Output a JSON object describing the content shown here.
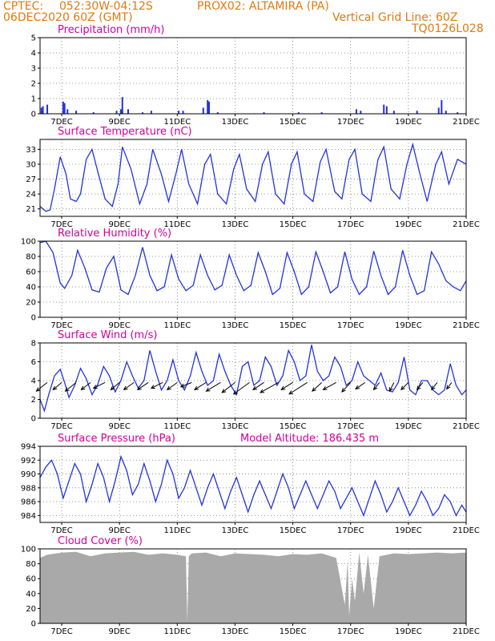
{
  "header": {
    "source": "CPTEC:",
    "coords": "052:30W-04:12S",
    "location": "PROX02: ALTAMIRA (PA)",
    "run": "06DEC2020 60Z (GMT)",
    "grid_note": "Vertical Grid Line: 60Z",
    "model_id": "TQ0126L028"
  },
  "colors": {
    "header": "#e07a10",
    "title": "#d0009a",
    "line": "#2233dd",
    "bars": "#2233dd",
    "cloud": "#a9a9a9"
  },
  "x_ticks": [
    "7DEC",
    "9DEC",
    "11DEC",
    "13DEC",
    "15DEC",
    "17DEC",
    "19DEC",
    "21DEC"
  ],
  "chart_data": [
    {
      "type": "bar",
      "title": "Precipitation (mm/h)",
      "ylim": [
        0,
        5
      ],
      "yticks": [
        "0",
        "1",
        "2",
        "3",
        "4",
        "5"
      ],
      "x_range_days": [
        6.25,
        21.0
      ],
      "x": [
        6.3,
        6.35,
        6.5,
        7.05,
        7.1,
        7.2,
        7.5,
        8.1,
        8.9,
        9.05,
        9.1,
        9.3,
        9.8,
        10.1,
        11.05,
        11.2,
        11.9,
        12.05,
        12.1,
        12.4,
        14.0,
        15.2,
        16.0,
        17.2,
        17.35,
        18.15,
        18.25,
        18.5,
        19.3,
        20.05,
        20.15,
        20.3,
        20.7
      ],
      "values": [
        0.4,
        0.5,
        0.6,
        0.8,
        0.7,
        0.3,
        0.2,
        0.1,
        0.2,
        0.3,
        1.1,
        0.3,
        0.1,
        0.2,
        0.2,
        0.2,
        0.4,
        0.9,
        0.8,
        0.1,
        0.1,
        0.1,
        0.1,
        0.3,
        0.2,
        0.6,
        0.5,
        0.2,
        0.2,
        0.4,
        0.9,
        0.2,
        0.1
      ]
    },
    {
      "type": "line",
      "title": "Surface Temperature (nC)",
      "ylim": [
        19.5,
        35
      ],
      "yticks": [
        "21",
        "24",
        "27",
        "30",
        "33"
      ],
      "x_range_days": [
        6.25,
        21.0
      ],
      "x": [
        6.25,
        6.45,
        6.6,
        6.75,
        6.95,
        7.15,
        7.3,
        7.5,
        7.65,
        7.85,
        8.05,
        8.25,
        8.5,
        8.75,
        8.95,
        9.1,
        9.4,
        9.7,
        9.95,
        10.15,
        10.45,
        10.7,
        10.95,
        11.15,
        11.4,
        11.7,
        11.95,
        12.15,
        12.4,
        12.7,
        12.95,
        13.15,
        13.4,
        13.7,
        13.95,
        14.15,
        14.4,
        14.7,
        14.95,
        15.15,
        15.4,
        15.7,
        15.95,
        16.15,
        16.45,
        16.7,
        16.95,
        17.15,
        17.4,
        17.7,
        17.95,
        18.15,
        18.4,
        18.7,
        18.95,
        19.15,
        19.4,
        19.65,
        19.95,
        20.15,
        20.4,
        20.7,
        21.0
      ],
      "values": [
        21.5,
        20.5,
        20.8,
        25.0,
        31.5,
        28.0,
        23.0,
        22.5,
        24.0,
        31.0,
        33.0,
        28.5,
        23.0,
        21.5,
        26.0,
        33.5,
        29.0,
        22.0,
        26.0,
        33.0,
        28.0,
        22.5,
        28.0,
        33.0,
        26.0,
        22.0,
        30.0,
        32.0,
        24.0,
        22.0,
        29.0,
        32.0,
        25.0,
        22.5,
        30.0,
        32.5,
        24.0,
        22.0,
        30.0,
        32.5,
        24.0,
        22.5,
        30.5,
        33.0,
        24.5,
        23.0,
        31.0,
        33.0,
        24.0,
        22.5,
        31.0,
        33.5,
        25.0,
        23.0,
        30.0,
        34.0,
        28.0,
        22.5,
        30.0,
        32.5,
        26.0,
        31.0,
        30.0
      ]
    },
    {
      "type": "line",
      "title": "Relative Humidity (%)",
      "ylim": [
        0,
        100
      ],
      "yticks": [
        "0",
        "20",
        "40",
        "60",
        "80",
        "100"
      ],
      "x_range_days": [
        6.25,
        21.0
      ],
      "x": [
        6.25,
        6.45,
        6.7,
        6.95,
        7.1,
        7.35,
        7.55,
        7.8,
        8.05,
        8.3,
        8.55,
        8.8,
        9.05,
        9.3,
        9.55,
        9.8,
        10.05,
        10.3,
        10.55,
        10.8,
        11.05,
        11.3,
        11.55,
        11.8,
        12.05,
        12.3,
        12.55,
        12.8,
        13.05,
        13.3,
        13.55,
        13.8,
        14.05,
        14.3,
        14.55,
        14.8,
        15.05,
        15.3,
        15.55,
        15.8,
        16.05,
        16.3,
        16.55,
        16.8,
        17.05,
        17.3,
        17.55,
        17.8,
        18.05,
        18.3,
        18.55,
        18.8,
        19.05,
        19.3,
        19.55,
        19.8,
        20.05,
        20.3,
        20.55,
        20.8,
        21.0
      ],
      "values": [
        98,
        100,
        85,
        45,
        38,
        55,
        88,
        65,
        36,
        33,
        65,
        80,
        36,
        30,
        55,
        92,
        55,
        35,
        40,
        82,
        50,
        35,
        42,
        82,
        55,
        36,
        42,
        82,
        55,
        35,
        42,
        85,
        60,
        30,
        38,
        85,
        60,
        30,
        40,
        86,
        60,
        32,
        40,
        86,
        50,
        30,
        40,
        87,
        55,
        30,
        40,
        88,
        55,
        30,
        35,
        86,
        70,
        48,
        40,
        35,
        48
      ]
    },
    {
      "type": "line",
      "title": "Surface Wind (m/s)",
      "ylim": [
        0,
        8
      ],
      "yticks": [
        "0",
        "2",
        "4",
        "6",
        "8"
      ],
      "x_range_days": [
        6.25,
        21.0
      ],
      "x": [
        6.25,
        6.4,
        6.55,
        6.75,
        6.95,
        7.1,
        7.25,
        7.45,
        7.65,
        7.85,
        8.05,
        8.25,
        8.45,
        8.65,
        8.85,
        9.05,
        9.25,
        9.45,
        9.65,
        9.85,
        10.05,
        10.25,
        10.45,
        10.65,
        10.85,
        11.05,
        11.25,
        11.45,
        11.65,
        11.85,
        12.05,
        12.25,
        12.45,
        12.65,
        12.85,
        13.05,
        13.25,
        13.45,
        13.65,
        13.85,
        14.05,
        14.25,
        14.45,
        14.65,
        14.85,
        15.05,
        15.25,
        15.45,
        15.65,
        15.85,
        16.05,
        16.25,
        16.45,
        16.65,
        16.85,
        17.05,
        17.25,
        17.45,
        17.65,
        17.85,
        18.05,
        18.25,
        18.45,
        18.65,
        18.85,
        19.05,
        19.25,
        19.45,
        19.65,
        19.85,
        20.05,
        20.25,
        20.45,
        20.65,
        20.85,
        21.0
      ],
      "values": [
        2.0,
        0.8,
        2.5,
        4.5,
        5.2,
        3.8,
        2.2,
        3.5,
        5.3,
        4.2,
        2.5,
        3.6,
        5.5,
        4.5,
        2.8,
        4.0,
        6.0,
        4.5,
        3.2,
        4.0,
        7.2,
        5.0,
        3.0,
        4.0,
        6.2,
        4.0,
        3.0,
        4.5,
        7.0,
        5.0,
        3.5,
        4.0,
        6.8,
        5.0,
        3.5,
        2.5,
        5.5,
        6.0,
        3.5,
        4.0,
        6.5,
        5.5,
        3.5,
        4.5,
        7.2,
        6.0,
        4.0,
        4.5,
        7.8,
        5.0,
        4.0,
        4.5,
        6.5,
        5.5,
        3.5,
        4.0,
        6.0,
        4.5,
        4.0,
        3.5,
        4.8,
        3.0,
        2.8,
        3.8,
        6.5,
        3.0,
        2.5,
        4.0,
        4.0,
        3.0,
        2.5,
        3.0,
        5.8,
        3.5,
        2.5,
        3.0
      ]
    },
    {
      "type": "line",
      "title": "Surface Pressure (hPa)",
      "annotation": "Model Altitude: 186.435 m",
      "ylim": [
        983,
        994
      ],
      "yticks": [
        "984",
        "986",
        "988",
        "990",
        "992",
        "994"
      ],
      "x_range_days": [
        6.25,
        21.0
      ],
      "x": [
        6.25,
        6.45,
        6.65,
        6.85,
        7.05,
        7.25,
        7.45,
        7.65,
        7.85,
        8.05,
        8.25,
        8.45,
        8.65,
        8.85,
        9.05,
        9.25,
        9.45,
        9.65,
        9.85,
        10.05,
        10.25,
        10.45,
        10.65,
        10.85,
        11.05,
        11.25,
        11.45,
        11.65,
        11.85,
        12.05,
        12.25,
        12.45,
        12.65,
        12.85,
        13.05,
        13.25,
        13.45,
        13.65,
        13.85,
        14.05,
        14.25,
        14.45,
        14.65,
        14.85,
        15.05,
        15.25,
        15.45,
        15.65,
        15.85,
        16.05,
        16.25,
        16.45,
        16.65,
        16.85,
        17.05,
        17.25,
        17.45,
        17.65,
        17.85,
        18.05,
        18.25,
        18.45,
        18.65,
        18.85,
        19.05,
        19.25,
        19.45,
        19.65,
        19.85,
        20.05,
        20.25,
        20.45,
        20.65,
        20.85,
        21.0
      ],
      "values": [
        989.5,
        991.0,
        992.0,
        990.0,
        986.5,
        989.0,
        991.5,
        990.0,
        986.0,
        988.5,
        991.5,
        989.5,
        986.0,
        989.0,
        992.5,
        990.5,
        987.0,
        988.5,
        991.5,
        989.0,
        986.0,
        988.5,
        992.0,
        990.0,
        986.5,
        988.0,
        990.5,
        988.0,
        985.5,
        988.0,
        990.0,
        987.5,
        985.0,
        987.5,
        989.5,
        987.0,
        984.5,
        987.0,
        989.0,
        987.0,
        985.0,
        987.5,
        990.0,
        988.0,
        985.0,
        987.0,
        989.0,
        987.0,
        985.0,
        987.0,
        989.0,
        987.5,
        985.0,
        986.5,
        988.0,
        986.0,
        984.0,
        986.5,
        989.0,
        987.0,
        984.5,
        986.0,
        988.0,
        986.0,
        984.0,
        985.5,
        987.5,
        986.0,
        984.0,
        985.0,
        987.0,
        986.0,
        984.0,
        985.5,
        984.5
      ]
    },
    {
      "type": "area",
      "title": "Cloud Cover (%)",
      "ylim": [
        0,
        100
      ],
      "yticks": [
        "0",
        "20",
        "40",
        "60",
        "80",
        "100"
      ],
      "x_range_days": [
        6.25,
        21.0
      ],
      "x": [
        6.25,
        6.5,
        7.0,
        7.5,
        8.0,
        8.5,
        9.0,
        9.5,
        10.0,
        10.5,
        11.0,
        11.3,
        11.35,
        11.4,
        11.5,
        12.0,
        12.5,
        13.0,
        13.5,
        14.0,
        14.5,
        15.0,
        15.5,
        16.0,
        16.5,
        16.8,
        16.9,
        16.95,
        17.05,
        17.15,
        17.3,
        17.45,
        17.6,
        17.8,
        18.0,
        18.5,
        19.0,
        19.5,
        20.0,
        20.5,
        21.0
      ],
      "values": [
        88,
        92,
        95,
        96,
        90,
        94,
        95,
        96,
        92,
        94,
        92,
        90,
        2,
        90,
        94,
        95,
        90,
        94,
        93,
        92,
        90,
        93,
        92,
        94,
        88,
        25,
        85,
        10,
        60,
        30,
        95,
        40,
        92,
        20,
        90,
        94,
        93,
        94,
        95,
        94,
        95
      ]
    },
    {
      "type": "scatter",
      "name": "wind-vectors",
      "x_range_days": [
        6.25,
        21.0
      ],
      "x": [
        6.5,
        7.0,
        7.5,
        8.0,
        8.5,
        9.0,
        9.5,
        10.0,
        10.5,
        11.0,
        11.5,
        12.0,
        12.5,
        13.0,
        13.5,
        14.0,
        14.5,
        15.0,
        15.5,
        16.0,
        16.5,
        17.0,
        17.5,
        18.0,
        18.5,
        19.0,
        19.5,
        20.0,
        20.5
      ],
      "u_ms": [
        -1.5,
        -1.2,
        -1.5,
        -1.3,
        -1.6,
        -1.2,
        -1.4,
        -1.5,
        -1.6,
        -1.4,
        -1.5,
        -1.6,
        -2.0,
        -1.8,
        -2.2,
        -1.5,
        -2.5,
        -1.6,
        -2.5,
        -1.3,
        -1.8,
        -1.2,
        -1.3,
        -0.8,
        -0.6,
        -1.0,
        -0.8,
        -0.8,
        -0.7
      ],
      "v_ms": [
        -1.2,
        -1.0,
        -1.2,
        -1.0,
        -0.8,
        -1.0,
        -1.0,
        -1.0,
        -0.8,
        -1.0,
        -0.6,
        -1.0,
        -1.2,
        -1.4,
        -1.6,
        -1.0,
        -1.4,
        -1.0,
        -1.6,
        -1.2,
        -1.0,
        -1.3,
        -0.9,
        -1.0,
        -1.2,
        -1.0,
        -1.0,
        -1.0,
        -0.9
      ]
    }
  ]
}
